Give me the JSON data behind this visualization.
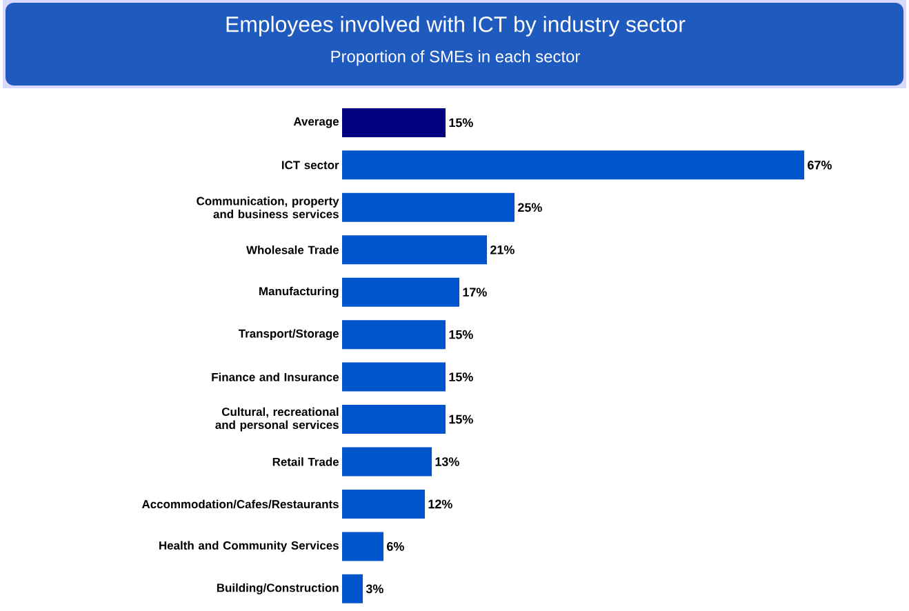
{
  "chart_data": {
    "type": "bar",
    "orientation": "horizontal",
    "title": "Employees involved with ICT by industry sector",
    "subtitle": "Proportion of SMEs in each sector",
    "categories": [
      "Average",
      "ICT sector",
      "Communication, property and business services",
      "Wholesale Trade",
      "Manufacturing",
      "Transport/Storage",
      "Finance and Insurance",
      "Cultural, recreational and personal services",
      "Retail Trade",
      "Accommodation/Cafes/Restaurants",
      "Health and Community Services",
      "Building/Construction"
    ],
    "values": [
      15,
      67,
      25,
      21,
      17,
      15,
      15,
      15,
      13,
      12,
      6,
      3
    ],
    "value_labels": [
      "15%",
      "67%",
      "25%",
      "21%",
      "17%",
      "15%",
      "15%",
      "15%",
      "13%",
      "12%",
      "6%",
      "3%"
    ],
    "colors": [
      "#000080",
      "#0055cc",
      "#0055cc",
      "#0055cc",
      "#0055cc",
      "#0055cc",
      "#0055cc",
      "#0055cc",
      "#0055cc",
      "#0055cc",
      "#0055cc",
      "#0055cc"
    ]
  }
}
